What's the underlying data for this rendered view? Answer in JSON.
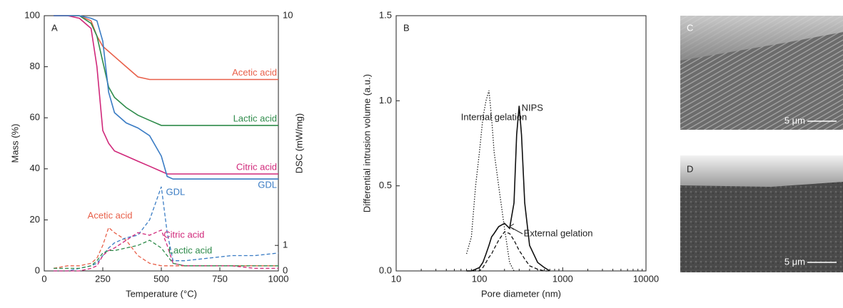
{
  "chart_data": [
    {
      "type": "line",
      "panel": "A",
      "x_label": "Temperature (°C)",
      "y_label": "Mass (%)",
      "y2_label": "DSC (mW/mg)",
      "x": [
        40,
        100,
        150,
        200,
        225,
        250,
        275,
        300,
        350,
        400,
        450,
        500,
        525,
        550,
        600,
        700,
        800,
        900,
        1000
      ],
      "xlim": [
        0,
        1000
      ],
      "xticks": [
        0,
        250,
        500,
        750,
        1000
      ],
      "ylim": [
        0,
        100
      ],
      "yticks": [
        0,
        20,
        40,
        60,
        80,
        100
      ],
      "y2lim": [
        0,
        10
      ],
      "y2ticks": [
        0,
        1,
        10
      ],
      "series": [
        {
          "name": "Acetic acid",
          "color": "#e8604a",
          "line_style": "solid",
          "values": [
            100,
            100,
            100,
            98,
            92,
            88,
            86,
            84,
            80,
            76,
            75,
            75,
            75,
            75,
            75,
            75,
            75,
            75,
            75
          ]
        },
        {
          "name": "Lactic acid",
          "color": "#2e8b4a",
          "line_style": "solid",
          "values": [
            100,
            100,
            100,
            97,
            92,
            82,
            72,
            68,
            64,
            61,
            59,
            57,
            57,
            57,
            57,
            57,
            57,
            57,
            57
          ]
        },
        {
          "name": "Citric acid",
          "color": "#d0287a",
          "line_style": "solid",
          "values": [
            100,
            100,
            99,
            95,
            80,
            55,
            50,
            47,
            45,
            43,
            41,
            39,
            38,
            38,
            38,
            38,
            38,
            38,
            38
          ]
        },
        {
          "name": "GDL",
          "color": "#3a7cc4",
          "line_style": "solid",
          "values": [
            100,
            100,
            100,
            99,
            98,
            90,
            70,
            62,
            58,
            56,
            53,
            45,
            37,
            36,
            36,
            36,
            36,
            36,
            36
          ]
        },
        {
          "name": "Acetic acid",
          "color": "#e8604a",
          "line_style": "dashed",
          "axis": "y2",
          "values": [
            0.1,
            0.2,
            0.2,
            0.3,
            0.5,
            1.0,
            1.7,
            1.5,
            1.2,
            0.6,
            0.3,
            0.2,
            0.2,
            0.2,
            0.2,
            0.2,
            0.2,
            0.2,
            0.2
          ]
        },
        {
          "name": "GDL",
          "color": "#3a7cc4",
          "line_style": "dashed",
          "axis": "y2",
          "values": [
            0,
            0,
            0.1,
            0.2,
            0.3,
            0.6,
            0.9,
            1.1,
            1.3,
            1.4,
            2.0,
            3.3,
            1.5,
            0.4,
            0.4,
            0.5,
            0.6,
            0.6,
            0.7
          ]
        },
        {
          "name": "Citric acid",
          "color": "#d0287a",
          "line_style": "dashed",
          "axis": "y2",
          "values": [
            0,
            0,
            0,
            0.1,
            0.2,
            0.6,
            0.8,
            0.9,
            1.2,
            1.5,
            1.4,
            1.6,
            1.0,
            0.3,
            0.2,
            0.2,
            0.2,
            0.1,
            0.1
          ]
        },
        {
          "name": "Lactic acid",
          "color": "#2e8b4a",
          "line_style": "dashed",
          "axis": "y2",
          "values": [
            0.1,
            0.1,
            0.1,
            0.2,
            0.4,
            0.7,
            0.8,
            0.8,
            0.9,
            1.0,
            1.2,
            0.9,
            0.6,
            0.3,
            0.2,
            0.2,
            0.2,
            0.2,
            0.2
          ]
        }
      ]
    },
    {
      "type": "line",
      "panel": "B",
      "x_label": "Pore diameter (nm)",
      "y_label": "Differential intrusion volume (a.u.)",
      "x_scale": "log",
      "x": [
        70,
        80,
        90,
        100,
        110,
        120,
        130,
        140,
        150,
        170,
        200,
        230,
        260,
        280,
        300,
        320,
        350,
        400,
        500,
        600,
        700
      ],
      "xlim": [
        10,
        10000
      ],
      "xticks": [
        10,
        100,
        1000,
        10000
      ],
      "ylim": [
        0,
        1.5
      ],
      "yticks": [
        {
          "value": 0,
          "label": "0.0"
        },
        0.5,
        {
          "value": 1,
          "label": "1.0"
        },
        1.5
      ],
      "series": [
        {
          "name": "Internal gelation",
          "color": "#222222",
          "line_style": "dotted",
          "values": [
            0.1,
            0.2,
            0.5,
            0.7,
            0.9,
            1.0,
            1.06,
            0.9,
            0.7,
            0.5,
            0.25,
            0.05,
            0,
            null,
            null,
            null,
            null,
            null,
            null,
            null,
            null
          ]
        },
        {
          "name": "NIPS",
          "color": "#111111",
          "line_style": "solid",
          "values": [
            0,
            0,
            0.01,
            0.02,
            0.05,
            0.1,
            0.15,
            0.2,
            0.22,
            0.26,
            0.28,
            0.25,
            0.4,
            0.8,
            0.97,
            0.8,
            0.4,
            0.15,
            0.05,
            0.02,
            0
          ]
        },
        {
          "name": "External gelation",
          "color": "#111111",
          "line_style": "dashed",
          "values": [
            0,
            0,
            0,
            0,
            0.02,
            0.05,
            0.08,
            0.1,
            0.13,
            0.18,
            0.23,
            0.22,
            0.18,
            0.15,
            0.12,
            0.1,
            0.07,
            0.03,
            0.01,
            0,
            0
          ]
        }
      ]
    }
  ],
  "images": [
    {
      "label": "C",
      "scale_bar": "5 μm"
    },
    {
      "label": "D",
      "scale_bar": "5 μm"
    }
  ]
}
